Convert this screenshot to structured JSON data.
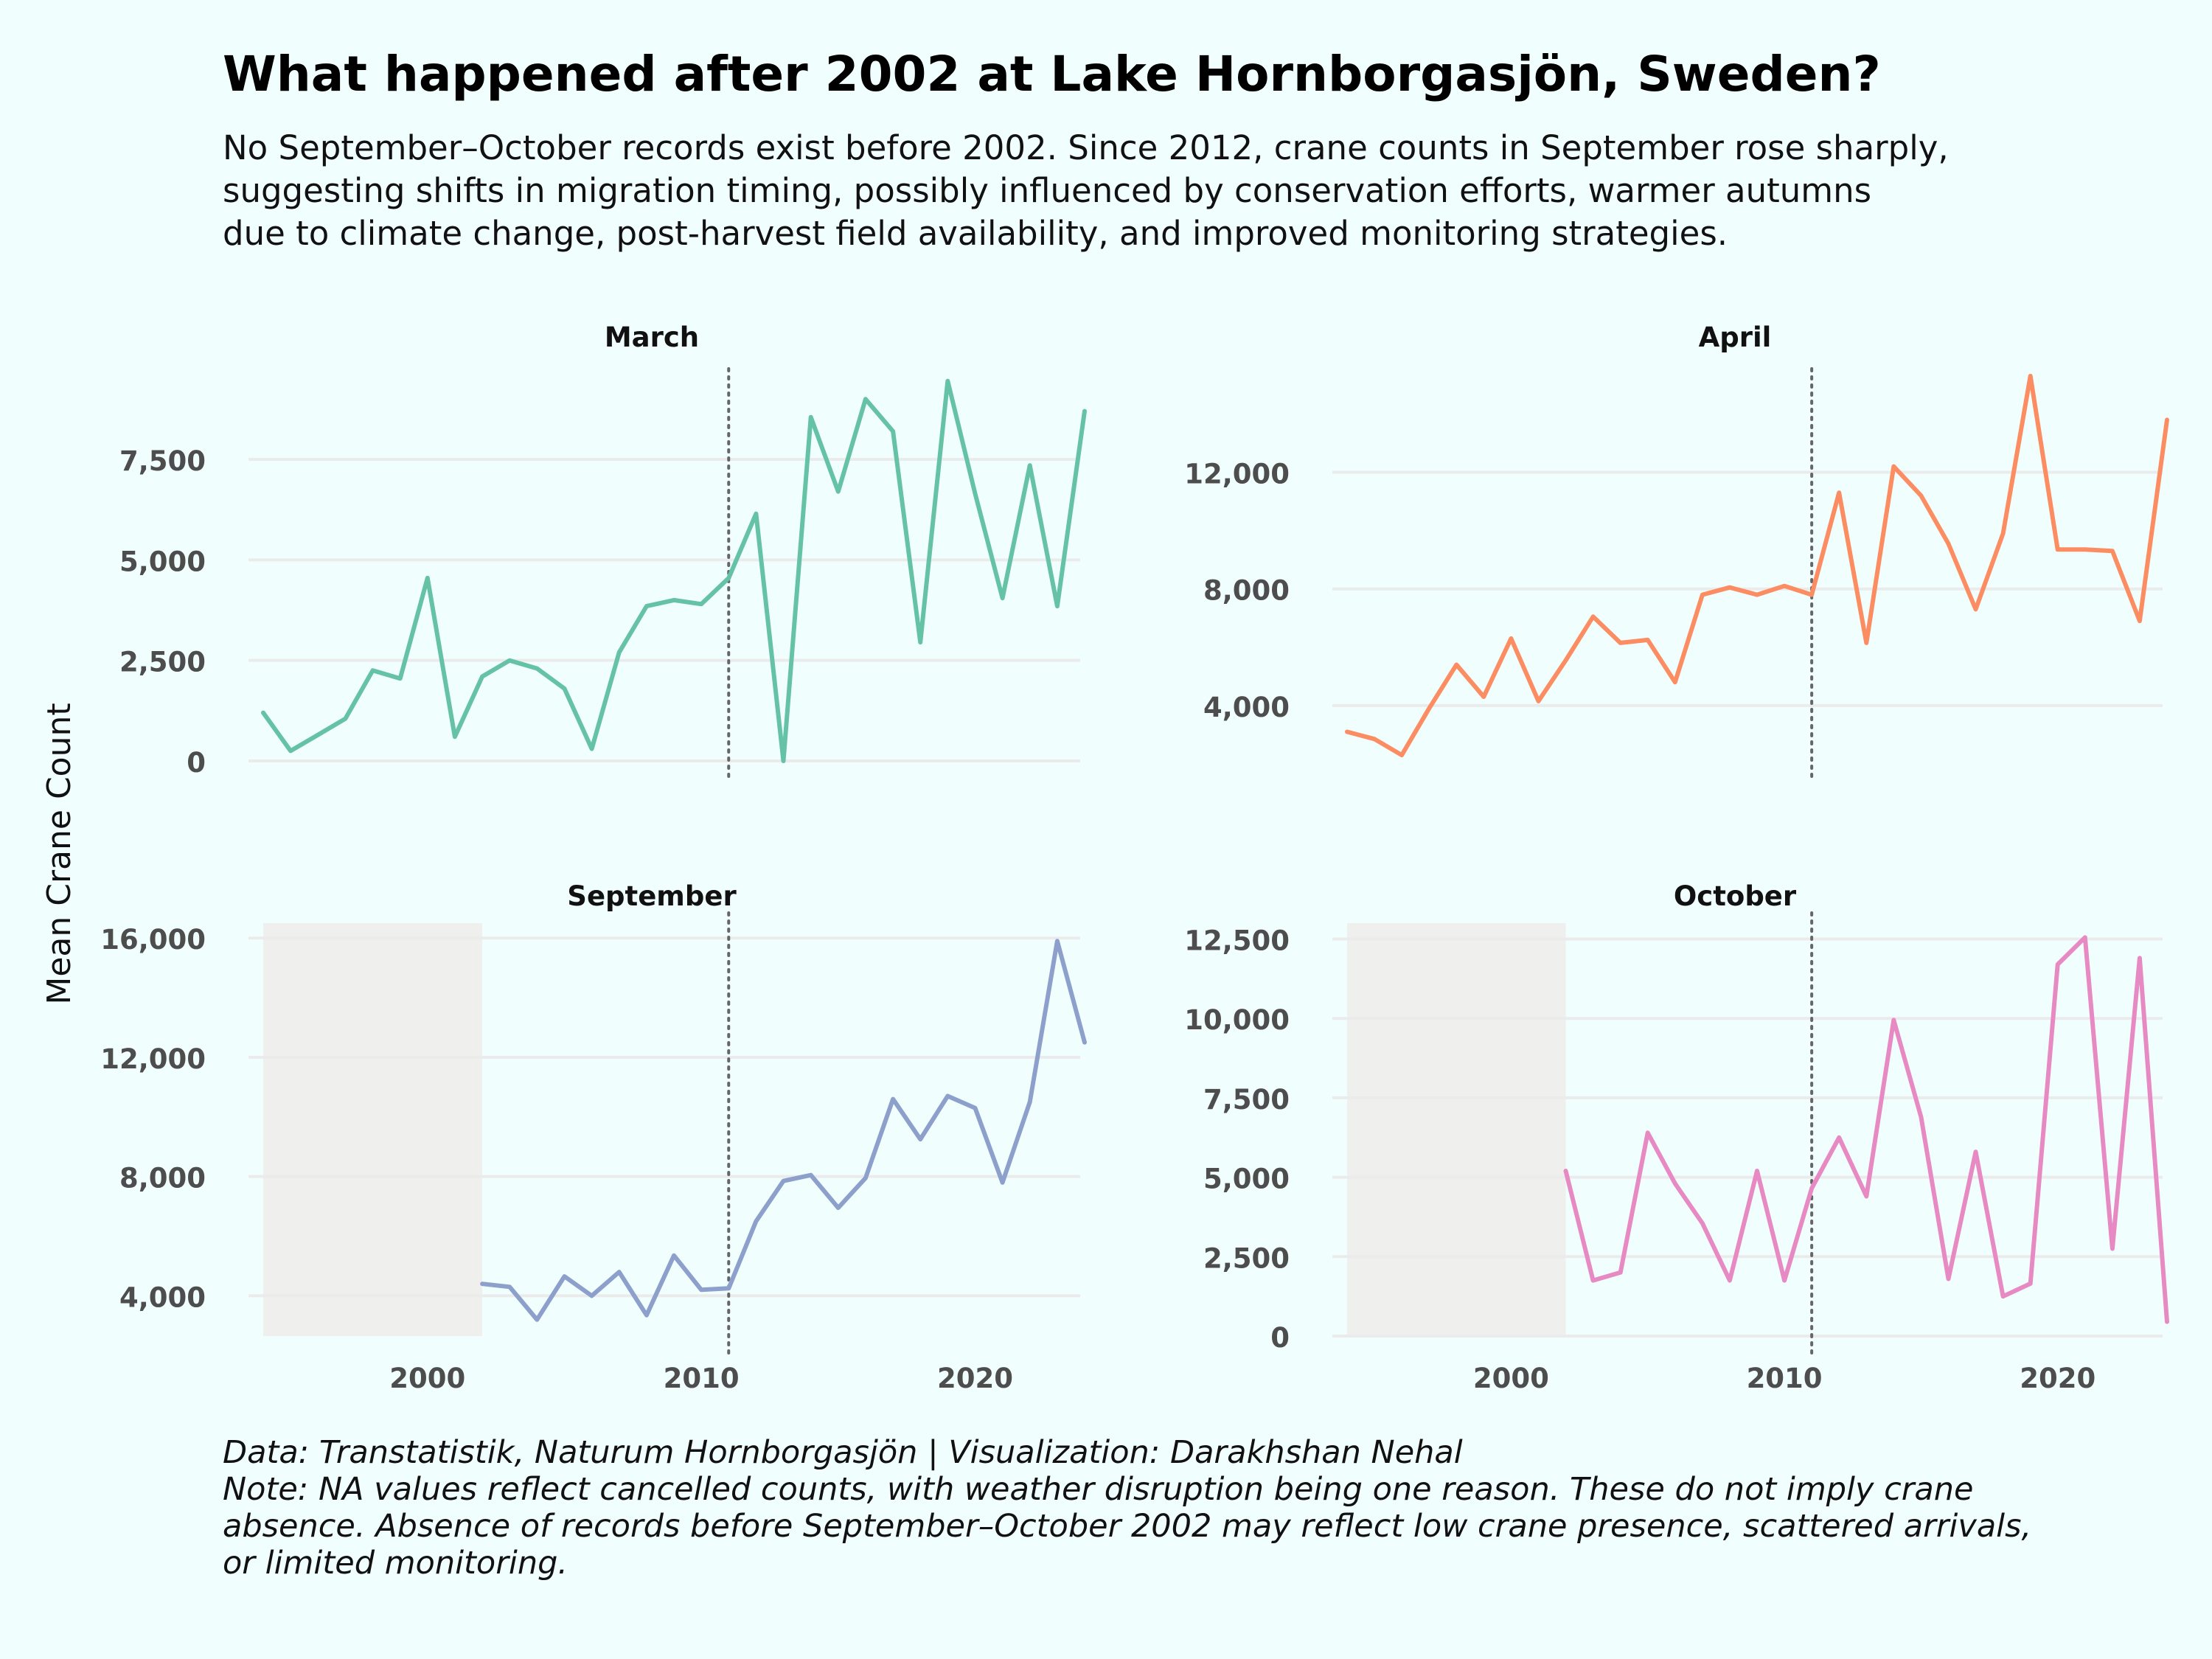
{
  "title": "What happened after 2002 at Lake Hornborgasjön, Sweden?",
  "subtitle": [
    "No September–October records exist before 2002. Since 2012, crane counts in September rose sharply,",
    "suggesting shifts in migration timing, possibly influenced by conservation efforts, warmer autumns",
    "due to climate change, post-harvest field availability, and improved monitoring strategies."
  ],
  "caption": [
    "Data: Transtatistik, Naturum Hornborgasjön | Visualization: Darakhshan Nehal",
    "Note: NA values reflect cancelled counts, with weather disruption being one reason. These do not imply crane",
    "absence. Absence of records before September–October 2002 may reflect low crane presence, scattered arrivals,",
    "or limited monitoring."
  ],
  "y_axis_label": "Mean Crane Count",
  "colors": {
    "background": "#f0fffe",
    "grid": "#ecebeb",
    "reference_line": "#666666",
    "shaded_region": "#efefee",
    "tick_text": "#4d4d4d"
  },
  "chart_data": [
    {
      "type": "line",
      "title": "March",
      "color": "#66c2a5",
      "reference_x": 2011,
      "xlim": [
        1994,
        2024
      ],
      "ylim": [
        0,
        9500
      ],
      "x_ticks": [
        2000,
        2010,
        2020
      ],
      "y_ticks": [
        0,
        2500,
        5000,
        7500
      ],
      "y_tick_labels": [
        "0",
        "2,500",
        "5,000",
        "7,500"
      ],
      "x": [
        1994,
        1995,
        1996,
        1997,
        1998,
        1999,
        2000,
        2001,
        2002,
        2003,
        2004,
        2005,
        2006,
        2007,
        2008,
        2009,
        2010,
        2011,
        2012,
        2013,
        2014,
        2015,
        2016,
        2017,
        2018,
        2019,
        2020,
        2021,
        2022,
        2023,
        2024
      ],
      "values": [
        1200,
        250,
        650,
        1050,
        2250,
        2050,
        4550,
        600,
        2100,
        2500,
        2300,
        1800,
        300,
        2700,
        3850,
        4000,
        3900,
        4550,
        6150,
        0,
        8550,
        6700,
        9000,
        8200,
        2950,
        9450,
        6650,
        4050,
        7350,
        3850,
        8700
      ]
    },
    {
      "type": "line",
      "title": "April",
      "color": "#fc8d62",
      "reference_x": 2011,
      "xlim": [
        1994,
        2024
      ],
      "ylim": [
        2100,
        15200
      ],
      "x_ticks": [
        2000,
        2010,
        2020
      ],
      "y_ticks": [
        4000,
        8000,
        12000
      ],
      "y_tick_labels": [
        "4,000",
        "8,000",
        "12,000"
      ],
      "x": [
        1994,
        1995,
        1996,
        1997,
        1998,
        1999,
        2000,
        2001,
        2002,
        2003,
        2004,
        2005,
        2006,
        2007,
        2008,
        2009,
        2010,
        2011,
        2012,
        2013,
        2014,
        2015,
        2016,
        2017,
        2018,
        2019,
        2020,
        2021,
        2022,
        2023,
        2024
      ],
      "values": [
        3100,
        2850,
        2300,
        3900,
        5400,
        4300,
        6300,
        4150,
        5550,
        7050,
        6150,
        6250,
        4800,
        7800,
        8050,
        7800,
        8100,
        7800,
        11300,
        6150,
        12200,
        11200,
        9550,
        7300,
        9900,
        15300,
        9350,
        9350,
        9300,
        6900,
        13800
      ]
    },
    {
      "type": "line",
      "title": "September",
      "color": "#8da0cb",
      "reference_x": 2011,
      "shaded_x_range": [
        1994,
        2002
      ],
      "xlim": [
        1994,
        2024
      ],
      "ylim": [
        2650,
        16500
      ],
      "x_ticks": [
        2000,
        2010,
        2020
      ],
      "y_ticks": [
        4000,
        8000,
        12000,
        16000
      ],
      "y_tick_labels": [
        "4,000",
        "8,000",
        "12,000",
        "16,000"
      ],
      "x": [
        2002,
        2003,
        2004,
        2005,
        2006,
        2007,
        2008,
        2009,
        2010,
        2011,
        2012,
        2013,
        2014,
        2015,
        2016,
        2017,
        2018,
        2019,
        2020,
        2021,
        2022,
        2023,
        2024
      ],
      "values": [
        4400,
        4300,
        3200,
        4650,
        4000,
        4800,
        3350,
        5350,
        4200,
        4250,
        6500,
        7850,
        8050,
        6950,
        7950,
        10600,
        9250,
        10700,
        10300,
        7800,
        10500,
        15900,
        12500
      ]
    },
    {
      "type": "line",
      "title": "October",
      "color": "#e78ac3",
      "reference_x": 2011,
      "shaded_x_range": [
        1994,
        2002
      ],
      "xlim": [
        1994,
        2024
      ],
      "ylim": [
        0,
        13000
      ],
      "x_ticks": [
        2000,
        2010,
        2020
      ],
      "y_ticks": [
        0,
        2500,
        5000,
        7500,
        10000,
        12500
      ],
      "y_tick_labels": [
        "0",
        "2,500",
        "5,000",
        "7,500",
        "10,000",
        "12,500"
      ],
      "x": [
        2002,
        2003,
        2004,
        2005,
        2006,
        2007,
        2008,
        2009,
        2010,
        2011,
        2012,
        2013,
        2014,
        2015,
        2016,
        2017,
        2018,
        2019,
        2020,
        2021,
        2022,
        2023,
        2024
      ],
      "values": [
        5200,
        1750,
        2000,
        6400,
        4800,
        3550,
        1750,
        5200,
        1750,
        4650,
        6250,
        4400,
        9950,
        6900,
        1800,
        5800,
        1250,
        1650,
        11700,
        12550,
        2750,
        11900,
        450
      ]
    }
  ]
}
